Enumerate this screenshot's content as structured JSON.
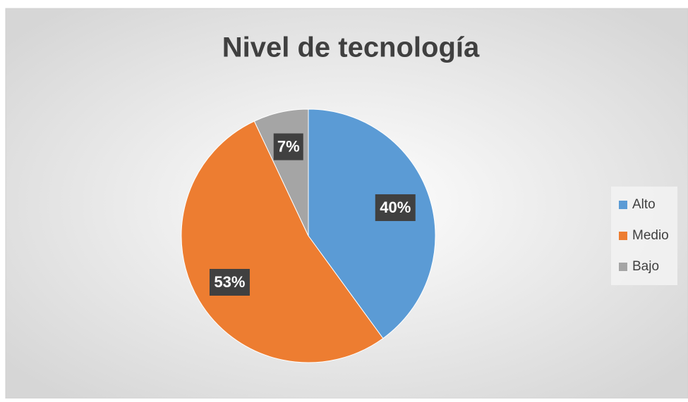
{
  "chart_data": {
    "type": "pie",
    "title": "Nivel de tecnología",
    "categories": [
      "Alto",
      "Medio",
      "Bajo"
    ],
    "values": [
      40,
      53,
      7
    ],
    "value_labels": [
      "40%",
      "53%",
      "7%"
    ],
    "colors": [
      "#5b9bd5",
      "#ed7d31",
      "#a5a5a5"
    ],
    "legend": "right"
  }
}
